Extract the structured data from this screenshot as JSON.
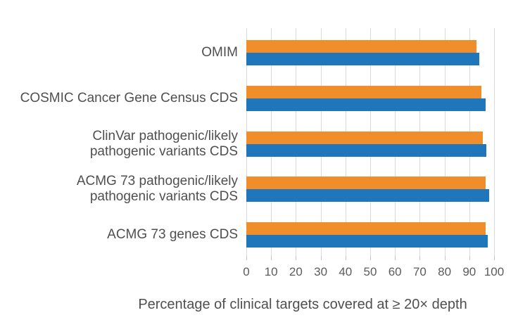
{
  "style": {
    "background": "#FFFFFF",
    "gridline_color": "#DBDBDB",
    "tick_color": "#C6C6C6",
    "label_color": "#4F4F4F",
    "tick_label_color": "#5C5C5C",
    "orange": "#EF8E2A",
    "blue": "#1F76BB"
  },
  "chart_data": {
    "type": "bar",
    "orientation": "horizontal",
    "title": "",
    "xlabel": "Percentage of clinical targets covered at ≥ 20× depth",
    "ylabel": "",
    "xlim": [
      0,
      100
    ],
    "x_ticks": [
      0,
      10,
      20,
      30,
      40,
      50,
      60,
      70,
      80,
      90,
      100
    ],
    "grid": "vertical gridlines only",
    "legend": "none",
    "categories": [
      "OMIM",
      "COSMIC Cancer Gene Census CDS",
      "ClinVar pathogenic/likely pathogenic variants CDS",
      "ACMG 73 pathogenic/likely pathogenic variants CDS",
      "ACMG 73 genes CDS"
    ],
    "category_label_lines": [
      [
        "OMIM"
      ],
      [
        "COSMIC Cancer Gene Census CDS"
      ],
      [
        "ClinVar pathogenic/likely",
        "pathogenic variants CDS"
      ],
      [
        "ACMG 73 pathogenic/likely",
        "pathogenic variants CDS"
      ],
      [
        "ACMG 73 genes CDS"
      ]
    ],
    "series": [
      {
        "name": "top-orange",
        "color": "#EF8E2A",
        "values": [
          93,
          95,
          95.5,
          96.5,
          96.5
        ]
      },
      {
        "name": "bottom-blue",
        "color": "#1F76BB",
        "values": [
          94,
          96.5,
          97,
          98,
          97.5
        ]
      }
    ]
  }
}
